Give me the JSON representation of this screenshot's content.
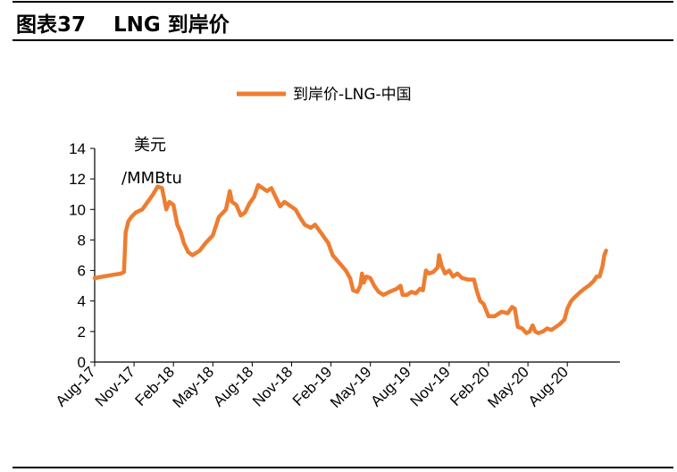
{
  "header": {
    "title": "图表37　 LNG 到岸价"
  },
  "chart_data": {
    "type": "line",
    "title": "",
    "ylabel": "美元\n/MMBtu",
    "ylabel_lines": [
      "美元",
      "/MMBtu"
    ],
    "ylim": [
      0,
      14
    ],
    "yticks": [
      0,
      2,
      4,
      6,
      8,
      10,
      12,
      14
    ],
    "xlim": [
      "2017-08-01",
      "2020-12-01"
    ],
    "xticks": [
      "Aug-17",
      "Nov-17",
      "Feb-18",
      "May-18",
      "Aug-18",
      "Nov-18",
      "Feb-19",
      "May-19",
      "Aug-19",
      "Nov-19",
      "Feb-20",
      "May-20",
      "Aug-20"
    ],
    "legend": {
      "position": "top-center",
      "entries": [
        "到岸价-LNG-中国"
      ]
    },
    "grid": false,
    "color": "#ED7D31",
    "series": [
      {
        "name": "到岸价-LNG-中国",
        "points": [
          [
            "2017-08-01",
            5.5
          ],
          [
            "2017-08-20",
            5.6
          ],
          [
            "2017-09-10",
            5.7
          ],
          [
            "2017-10-01",
            5.8
          ],
          [
            "2017-10-08",
            5.9
          ],
          [
            "2017-10-12",
            8.5
          ],
          [
            "2017-10-18",
            9.2
          ],
          [
            "2017-10-25",
            9.5
          ],
          [
            "2017-11-05",
            9.8
          ],
          [
            "2017-11-20",
            10.0
          ],
          [
            "2017-12-05",
            10.6
          ],
          [
            "2017-12-15",
            11.0
          ],
          [
            "2017-12-25",
            11.5
          ],
          [
            "2018-01-05",
            11.4
          ],
          [
            "2018-01-15",
            10.0
          ],
          [
            "2018-01-22",
            10.5
          ],
          [
            "2018-02-01",
            10.3
          ],
          [
            "2018-02-10",
            9.0
          ],
          [
            "2018-02-18",
            8.5
          ],
          [
            "2018-02-25",
            7.8
          ],
          [
            "2018-03-05",
            7.2
          ],
          [
            "2018-03-15",
            7.0
          ],
          [
            "2018-04-01",
            7.3
          ],
          [
            "2018-04-15",
            7.8
          ],
          [
            "2018-05-01",
            8.3
          ],
          [
            "2018-05-15",
            9.5
          ],
          [
            "2018-06-01",
            10.0
          ],
          [
            "2018-06-10",
            11.2
          ],
          [
            "2018-06-15",
            10.5
          ],
          [
            "2018-06-25",
            10.3
          ],
          [
            "2018-07-05",
            9.6
          ],
          [
            "2018-07-15",
            9.8
          ],
          [
            "2018-07-25",
            10.4
          ],
          [
            "2018-08-05",
            10.8
          ],
          [
            "2018-08-15",
            11.6
          ],
          [
            "2018-08-25",
            11.4
          ],
          [
            "2018-09-05",
            11.2
          ],
          [
            "2018-09-15",
            11.4
          ],
          [
            "2018-09-25",
            10.8
          ],
          [
            "2018-10-05",
            10.2
          ],
          [
            "2018-10-15",
            10.5
          ],
          [
            "2018-10-25",
            10.3
          ],
          [
            "2018-11-10",
            10.0
          ],
          [
            "2018-11-20",
            9.5
          ],
          [
            "2018-12-01",
            9.0
          ],
          [
            "2018-12-15",
            8.8
          ],
          [
            "2018-12-25",
            9.0
          ],
          [
            "2019-01-10",
            8.4
          ],
          [
            "2019-01-25",
            7.8
          ],
          [
            "2019-02-05",
            7.0
          ],
          [
            "2019-02-20",
            6.5
          ],
          [
            "2019-03-05",
            6.0
          ],
          [
            "2019-03-15",
            5.5
          ],
          [
            "2019-03-22",
            4.7
          ],
          [
            "2019-04-01",
            4.6
          ],
          [
            "2019-04-08",
            5.0
          ],
          [
            "2019-04-12",
            5.8
          ],
          [
            "2019-04-16",
            5.2
          ],
          [
            "2019-04-22",
            5.6
          ],
          [
            "2019-05-01",
            5.5
          ],
          [
            "2019-05-10",
            5.0
          ],
          [
            "2019-05-20",
            4.6
          ],
          [
            "2019-06-01",
            4.4
          ],
          [
            "2019-06-15",
            4.6
          ],
          [
            "2019-07-01",
            4.8
          ],
          [
            "2019-07-10",
            5.0
          ],
          [
            "2019-07-15",
            4.4
          ],
          [
            "2019-07-25",
            4.4
          ],
          [
            "2019-08-05",
            4.6
          ],
          [
            "2019-08-15",
            4.5
          ],
          [
            "2019-08-25",
            4.8
          ],
          [
            "2019-09-01",
            4.7
          ],
          [
            "2019-09-08",
            6.0
          ],
          [
            "2019-09-15",
            5.8
          ],
          [
            "2019-09-25",
            5.9
          ],
          [
            "2019-10-05",
            6.2
          ],
          [
            "2019-10-08",
            7.0
          ],
          [
            "2019-10-14",
            6.3
          ],
          [
            "2019-10-22",
            5.8
          ],
          [
            "2019-11-01",
            6.0
          ],
          [
            "2019-11-10",
            5.6
          ],
          [
            "2019-11-20",
            5.8
          ],
          [
            "2019-12-01",
            5.5
          ],
          [
            "2019-12-15",
            5.4
          ],
          [
            "2019-12-28",
            5.4
          ],
          [
            "2020-01-05",
            4.6
          ],
          [
            "2020-01-12",
            4.0
          ],
          [
            "2020-01-20",
            3.8
          ],
          [
            "2020-02-01",
            3.0
          ],
          [
            "2020-02-15",
            3.0
          ],
          [
            "2020-03-01",
            3.3
          ],
          [
            "2020-03-15",
            3.2
          ],
          [
            "2020-03-25",
            3.6
          ],
          [
            "2020-04-01",
            3.5
          ],
          [
            "2020-04-08",
            2.3
          ],
          [
            "2020-04-18",
            2.2
          ],
          [
            "2020-04-28",
            1.9
          ],
          [
            "2020-05-05",
            2.0
          ],
          [
            "2020-05-12",
            2.4
          ],
          [
            "2020-05-18",
            2.0
          ],
          [
            "2020-05-25",
            1.9
          ],
          [
            "2020-06-05",
            2.0
          ],
          [
            "2020-06-15",
            2.2
          ],
          [
            "2020-06-25",
            2.1
          ],
          [
            "2020-07-05",
            2.3
          ],
          [
            "2020-07-15",
            2.5
          ],
          [
            "2020-07-25",
            2.8
          ],
          [
            "2020-08-01",
            3.5
          ],
          [
            "2020-08-10",
            4.0
          ],
          [
            "2020-08-20",
            4.3
          ],
          [
            "2020-09-01",
            4.6
          ],
          [
            "2020-09-10",
            4.8
          ],
          [
            "2020-09-20",
            5.0
          ],
          [
            "2020-10-01",
            5.3
          ],
          [
            "2020-10-08",
            5.6
          ],
          [
            "2020-10-15",
            5.6
          ],
          [
            "2020-10-22",
            6.3
          ],
          [
            "2020-10-26",
            7.0
          ],
          [
            "2020-10-30",
            7.3
          ]
        ]
      }
    ]
  }
}
